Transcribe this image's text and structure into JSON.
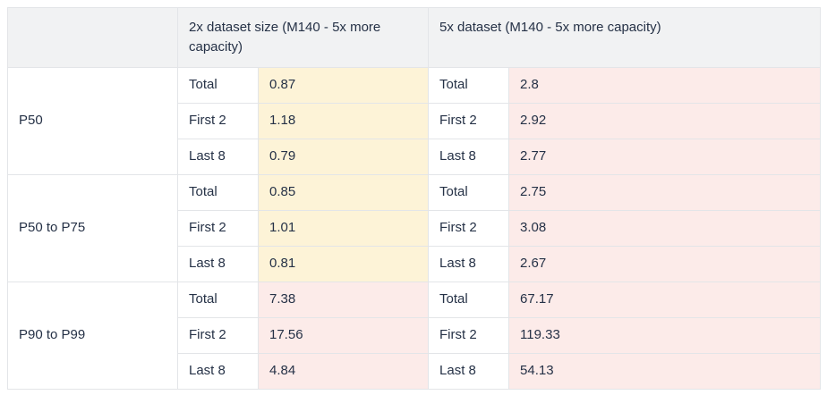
{
  "chart_data": {
    "type": "table",
    "headers": {
      "corner": "",
      "col_2x": "2x dataset size (M140 - 5x more capacity)",
      "col_5x": "5x dataset (M140 - 5x more capacity)"
    },
    "groups": [
      {
        "label": "P50",
        "highlight_2x": "yellow",
        "highlight_5x": "pink",
        "rows": [
          {
            "metric": "Total",
            "val_2x": "0.87",
            "val_5x": "2.8"
          },
          {
            "metric": "First 2",
            "val_2x": "1.18",
            "val_5x": "2.92"
          },
          {
            "metric": "Last 8",
            "val_2x": "0.79",
            "val_5x": "2.77"
          }
        ]
      },
      {
        "label": "P50 to P75",
        "highlight_2x": "yellow",
        "highlight_5x": "pink",
        "rows": [
          {
            "metric": "Total",
            "val_2x": "0.85",
            "val_5x": "2.75"
          },
          {
            "metric": "First 2",
            "val_2x": "1.01",
            "val_5x": "3.08"
          },
          {
            "metric": "Last 8",
            "val_2x": "0.81",
            "val_5x": "2.67"
          }
        ]
      },
      {
        "label": "P90 to P99",
        "highlight_2x": "pink",
        "highlight_5x": "pink",
        "rows": [
          {
            "metric": "Total",
            "val_2x": "7.38",
            "val_5x": "67.17"
          },
          {
            "metric": "First 2",
            "val_2x": "17.56",
            "val_5x": "119.33"
          },
          {
            "metric": "Last 8",
            "val_2x": "4.84",
            "val_5x": "54.13"
          }
        ]
      }
    ],
    "colors": {
      "yellow": "#fdf3d7",
      "pink": "#fcebe9",
      "header_bg": "#f1f2f3",
      "border": "#e3e5e8",
      "text": "#253146"
    }
  }
}
